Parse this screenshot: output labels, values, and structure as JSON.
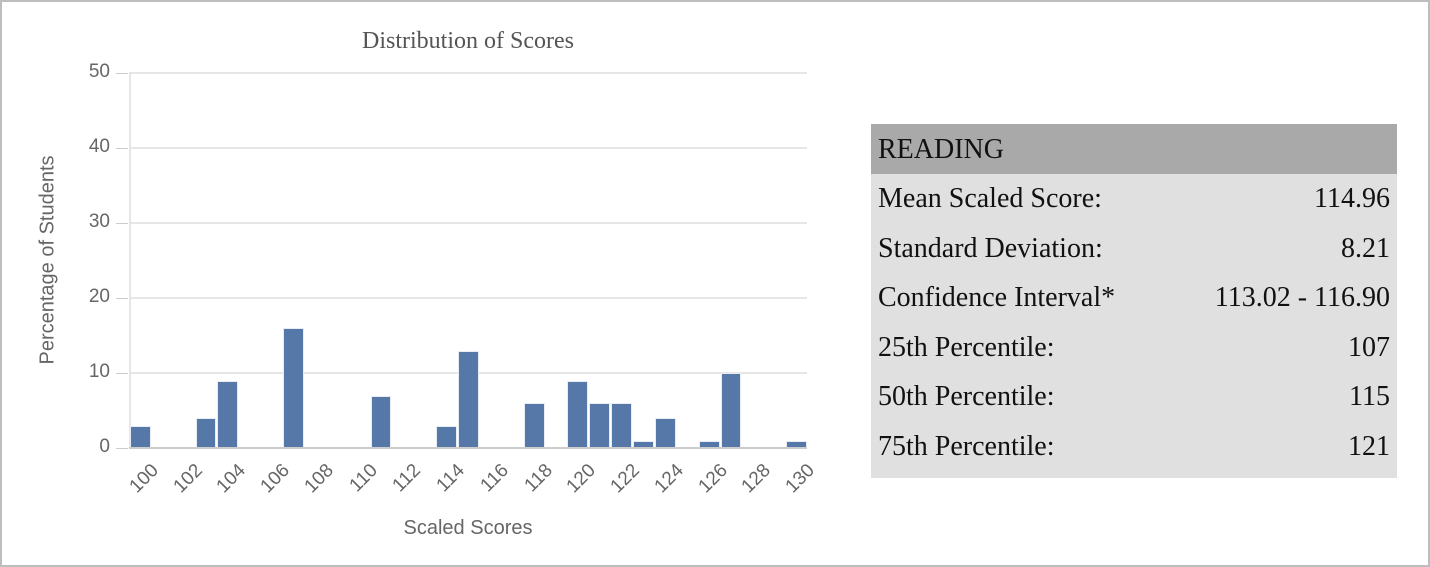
{
  "chart_title": "Distribution of Scores",
  "colors": {
    "bar": "#5578a8",
    "grid": "#e6e6e6",
    "header_bg": "#a9a9a9",
    "table_bg": "#e0e0e0"
  },
  "chart_data": {
    "type": "bar",
    "title": "Distribution of Scores",
    "xlabel": "Scaled Scores",
    "ylabel": "Percentage of Students",
    "ylim": [
      0,
      50
    ],
    "yticks": [
      0,
      10,
      20,
      30,
      40,
      50
    ],
    "xticks": [
      100,
      102,
      104,
      106,
      108,
      110,
      112,
      114,
      116,
      118,
      120,
      122,
      124,
      126,
      128,
      130
    ],
    "grid": true,
    "legend": null,
    "categories": [
      100,
      101,
      102,
      103,
      104,
      105,
      106,
      107,
      108,
      109,
      110,
      111,
      112,
      113,
      114,
      115,
      116,
      117,
      118,
      119,
      120,
      121,
      122,
      123,
      124,
      125,
      126,
      127,
      128,
      129,
      130
    ],
    "values": [
      3,
      0,
      0,
      4,
      9,
      0,
      0,
      16,
      0,
      0,
      0,
      7,
      0,
      0,
      3,
      13,
      0,
      0,
      6,
      0,
      9,
      6,
      6,
      1,
      4,
      0,
      1,
      10,
      0,
      0,
      1
    ]
  },
  "stats": {
    "header": "READING",
    "rows": [
      {
        "label": "Mean Scaled Score:",
        "value": "114.96"
      },
      {
        "label": "Standard Deviation:",
        "value": "8.21"
      },
      {
        "label": "Confidence Interval*",
        "value": "113.02 - 116.90"
      },
      {
        "label": "25th Percentile:",
        "value": "107"
      },
      {
        "label": "50th Percentile:",
        "value": "115"
      },
      {
        "label": "75th Percentile:",
        "value": "121"
      }
    ]
  }
}
